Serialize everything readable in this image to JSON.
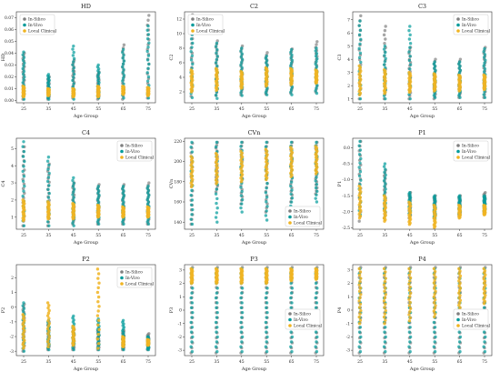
{
  "colors": {
    "In-Silico": "#808080",
    "In-Vivo": "#009b9b",
    "Local Clinical": "#f0b422"
  },
  "chart_data": [
    {
      "type": "scatter",
      "title": "HD",
      "xlabel": "Age Group",
      "ylabel": "HD",
      "categories": [
        "25",
        "35",
        "45",
        "55",
        "65",
        "75"
      ],
      "yticks": [
        "0.00",
        "0.01",
        "0.02",
        "0.03",
        "0.04",
        "0.05",
        "0.06",
        "0.07"
      ],
      "ylim": [
        -0.002,
        0.075
      ],
      "legend": "upper-left",
      "series": [
        {
          "name": "In-Silico",
          "ranges": [
            [
              0.001,
              0.04
            ],
            [
              0.001,
              0.02
            ],
            [
              0.002,
              0.034
            ],
            [
              0.001,
              0.024
            ],
            [
              0.001,
              0.047
            ],
            [
              0.002,
              0.072
            ]
          ]
        },
        {
          "name": "In-Vivo",
          "ranges": [
            [
              0.001,
              0.041
            ],
            [
              0.001,
              0.022
            ],
            [
              0.001,
              0.046
            ],
            [
              0.002,
              0.03
            ],
            [
              0.002,
              0.043
            ],
            [
              0.002,
              0.063
            ]
          ]
        },
        {
          "name": "Local Clinical",
          "ranges": [
            [
              0.003,
              0.012
            ],
            [
              0.004,
              0.01
            ],
            [
              0.003,
              0.01
            ],
            [
              0.003,
              0.012
            ],
            [
              0.005,
              0.012
            ],
            [
              0.004,
              0.011
            ]
          ]
        }
      ]
    },
    {
      "type": "scatter",
      "title": "C2",
      "xlabel": "Age Group",
      "ylabel": "C2",
      "categories": [
        "25",
        "35",
        "45",
        "55",
        "65",
        "75"
      ],
      "yticks": [
        "2",
        "4",
        "6",
        "8",
        "10",
        "12"
      ],
      "ylim": [
        0.5,
        13
      ],
      "legend": "upper-left",
      "series": [
        {
          "name": "In-Silico",
          "ranges": [
            [
              1.4,
              12.6
            ],
            [
              1.5,
              9.0
            ],
            [
              1.6,
              8.3
            ],
            [
              1.7,
              7.4
            ],
            [
              1.8,
              7.9
            ],
            [
              2.0,
              8.9
            ]
          ]
        },
        {
          "name": "In-Vivo",
          "ranges": [
            [
              1.2,
              11.0
            ],
            [
              1.1,
              8.7
            ],
            [
              1.5,
              8.0
            ],
            [
              1.6,
              6.9
            ],
            [
              1.6,
              7.8
            ],
            [
              1.8,
              8.0
            ]
          ]
        },
        {
          "name": "Local Clinical",
          "ranges": [
            [
              2.0,
              5.0
            ],
            [
              2.2,
              5.2
            ],
            [
              2.5,
              4.8
            ],
            [
              2.8,
              5.3
            ],
            [
              3.0,
              5.2
            ],
            [
              3.2,
              5.0
            ]
          ]
        }
      ]
    },
    {
      "type": "scatter",
      "title": "C3",
      "xlabel": "Age Group",
      "ylabel": "C3",
      "categories": [
        "25",
        "35",
        "45",
        "55",
        "65",
        "75"
      ],
      "yticks": [
        "1",
        "2",
        "3",
        "4",
        "5",
        "6",
        "7"
      ],
      "ylim": [
        0.7,
        7.6
      ],
      "legend": "upper-right",
      "series": [
        {
          "name": "In-Silico",
          "ranges": [
            [
              1.0,
              7.3
            ],
            [
              1.0,
              6.5
            ],
            [
              1.0,
              4.9
            ],
            [
              1.0,
              4.0
            ],
            [
              1.1,
              4.0
            ],
            [
              1.1,
              4.9
            ]
          ]
        },
        {
          "name": "In-Vivo",
          "ranges": [
            [
              1.0,
              6.9
            ],
            [
              1.0,
              5.0
            ],
            [
              1.0,
              6.5
            ],
            [
              1.1,
              3.8
            ],
            [
              1.1,
              3.8
            ],
            [
              1.1,
              4.8
            ]
          ]
        },
        {
          "name": "Local Clinical",
          "ranges": [
            [
              1.3,
              3.5
            ],
            [
              1.4,
              3.2
            ],
            [
              1.5,
              3.0
            ],
            [
              1.6,
              2.9
            ],
            [
              1.6,
              2.8
            ],
            [
              1.7,
              2.8
            ]
          ]
        }
      ]
    },
    {
      "type": "scatter",
      "title": "C4",
      "xlabel": "Age Group",
      "ylabel": "C4",
      "categories": [
        "25",
        "35",
        "45",
        "55",
        "65",
        "75"
      ],
      "yticks": [
        "1",
        "2",
        "3",
        "4",
        "5"
      ],
      "ylim": [
        0.3,
        5.6
      ],
      "legend": "upper-right",
      "series": [
        {
          "name": "In-Silico",
          "ranges": [
            [
              0.5,
              5.1
            ],
            [
              0.5,
              4.1
            ],
            [
              0.6,
              3.0
            ],
            [
              0.6,
              2.9
            ],
            [
              0.6,
              2.9
            ],
            [
              0.6,
              3.0
            ]
          ]
        },
        {
          "name": "In-Vivo",
          "ranges": [
            [
              0.5,
              5.4
            ],
            [
              0.5,
              4.5
            ],
            [
              0.5,
              3.3
            ],
            [
              0.6,
              2.8
            ],
            [
              0.6,
              2.8
            ],
            [
              0.6,
              2.8
            ]
          ]
        },
        {
          "name": "Local Clinical",
          "ranges": [
            [
              0.8,
              2.0
            ],
            [
              0.9,
              1.9
            ],
            [
              0.9,
              1.8
            ],
            [
              1.0,
              1.7
            ],
            [
              1.0,
              1.6
            ],
            [
              1.0,
              1.6
            ]
          ]
        }
      ]
    },
    {
      "type": "scatter",
      "title": "CVn",
      "xlabel": "Age Group",
      "ylabel": "CVn",
      "categories": [
        "25",
        "35",
        "45",
        "55",
        "65",
        "75"
      ],
      "yticks": [
        "140",
        "160",
        "180",
        "200",
        "220"
      ],
      "ylim": [
        133,
        223
      ],
      "legend": "lower-right",
      "series": [
        {
          "name": "In-Silico",
          "ranges": [
            [
              138,
              218
            ],
            [
              170,
              219
            ],
            [
              158,
              219
            ],
            [
              150,
              219
            ],
            [
              160,
              219
            ],
            [
              168,
              219
            ]
          ]
        },
        {
          "name": "In-Vivo",
          "ranges": [
            [
              138,
              219
            ],
            [
              140,
              219
            ],
            [
              150,
              219
            ],
            [
              142,
              219
            ],
            [
              152,
              219
            ],
            [
              160,
              219
            ]
          ]
        },
        {
          "name": "Local Clinical",
          "ranges": [
            [
              175,
              205
            ],
            [
              178,
              208
            ],
            [
              180,
              210
            ],
            [
              182,
              212
            ],
            [
              185,
              214
            ],
            [
              188,
              215
            ]
          ]
        }
      ]
    },
    {
      "type": "scatter",
      "title": "P1",
      "xlabel": "Age Group",
      "ylabel": "P1",
      "categories": [
        "25",
        "35",
        "45",
        "55",
        "65",
        "75"
      ],
      "yticks": [
        "-2.5",
        "-2.0",
        "-1.5",
        "-1.0",
        "-0.5",
        "0.0"
      ],
      "ylim": [
        -2.55,
        0.3
      ],
      "legend": "upper-right",
      "series": [
        {
          "name": "In-Silico",
          "ranges": [
            [
              -2.3,
              0.2
            ],
            [
              -2.2,
              -0.7
            ],
            [
              -2.2,
              -1.4
            ],
            [
              -2.2,
              -1.5
            ],
            [
              -2.1,
              -1.5
            ],
            [
              -2.0,
              -1.4
            ]
          ]
        },
        {
          "name": "In-Vivo",
          "ranges": [
            [
              -2.1,
              0.2
            ],
            [
              -2.0,
              -0.5
            ],
            [
              -2.1,
              -1.4
            ],
            [
              -2.2,
              -1.5
            ],
            [
              -2.1,
              -1.5
            ],
            [
              -2.0,
              -1.5
            ]
          ]
        },
        {
          "name": "Local Clinical",
          "ranges": [
            [
              -2.2,
              -1.2
            ],
            [
              -2.3,
              -1.5
            ],
            [
              -2.4,
              -1.7
            ],
            [
              -2.5,
              -1.8
            ],
            [
              -2.2,
              -1.8
            ],
            [
              -2.1,
              -1.8
            ]
          ]
        }
      ]
    },
    {
      "type": "scatter",
      "title": "P2",
      "xlabel": "Age Group",
      "ylabel": "P2",
      "categories": [
        "25",
        "35",
        "45",
        "55",
        "65",
        "75"
      ],
      "yticks": [
        "-3",
        "-2",
        "-1",
        "0",
        "1",
        "2"
      ],
      "ylim": [
        -3.3,
        2.9
      ],
      "legend": "upper-right",
      "series": [
        {
          "name": "In-Silico",
          "ranges": [
            [
              -3.0,
              0.2
            ],
            [
              -2.9,
              -1.0
            ],
            [
              -2.9,
              -1.5
            ],
            [
              -2.9,
              -1.5
            ],
            [
              -2.9,
              -1.6
            ],
            [
              -2.9,
              -1.8
            ]
          ]
        },
        {
          "name": "In-Vivo",
          "ranges": [
            [
              -3.0,
              0.3
            ],
            [
              -2.9,
              -0.9
            ],
            [
              -2.9,
              -0.6
            ],
            [
              -2.9,
              -0.8
            ],
            [
              -2.9,
              -0.9
            ],
            [
              -2.9,
              -2.0
            ]
          ]
        },
        {
          "name": "Local Clinical",
          "ranges": [
            [
              -2.8,
              -0.5
            ],
            [
              -2.7,
              0.3
            ],
            [
              -2.6,
              -1.3
            ],
            [
              -2.8,
              2.6
            ],
            [
              -2.7,
              -2.0
            ],
            [
              -2.6,
              -2.2
            ]
          ]
        }
      ]
    },
    {
      "type": "scatter",
      "title": "P3",
      "xlabel": "Age Group",
      "ylabel": "P3",
      "categories": [
        "25",
        "35",
        "45",
        "55",
        "65",
        "75"
      ],
      "yticks": [
        "-3",
        "-2",
        "-1",
        "0",
        "1",
        "2",
        "3"
      ],
      "ylim": [
        -3.4,
        3.4
      ],
      "legend": "center-right",
      "series": [
        {
          "name": "In-Silico",
          "ranges": [
            [
              -3.2,
              3.2
            ],
            [
              -3.2,
              3.2
            ],
            [
              -3.2,
              3.2
            ],
            [
              -3.2,
              3.2
            ],
            [
              -3.2,
              3.2
            ],
            [
              -3.2,
              3.2
            ]
          ]
        },
        {
          "name": "In-Vivo",
          "ranges": [
            [
              -3.1,
              3.1
            ],
            [
              -3.1,
              3.1
            ],
            [
              -3.1,
              3.1
            ],
            [
              -3.1,
              3.1
            ],
            [
              -3.1,
              3.1
            ],
            [
              -3.1,
              3.1
            ]
          ]
        },
        {
          "name": "Local Clinical",
          "ranges": [
            [
              2.0,
              3.1
            ],
            [
              2.0,
              3.1
            ],
            [
              2.0,
              3.1
            ],
            [
              2.0,
              3.1
            ],
            [
              2.2,
              3.1
            ],
            [
              2.3,
              3.1
            ]
          ]
        }
      ]
    },
    {
      "type": "scatter",
      "title": "P4",
      "xlabel": "Age Group",
      "ylabel": "P4",
      "categories": [
        "25",
        "35",
        "45",
        "55",
        "65",
        "75"
      ],
      "yticks": [
        "-3",
        "-2",
        "-1",
        "0",
        "1",
        "2",
        "3"
      ],
      "ylim": [
        -3.4,
        3.4
      ],
      "legend": "center-right",
      "series": [
        {
          "name": "In-Silico",
          "ranges": [
            [
              -3.2,
              3.2
            ],
            [
              -3.2,
              3.2
            ],
            [
              -3.2,
              3.2
            ],
            [
              -3.2,
              3.2
            ],
            [
              -3.2,
              3.2
            ],
            [
              -3.2,
              3.2
            ]
          ]
        },
        {
          "name": "In-Vivo",
          "ranges": [
            [
              -3.1,
              3.1
            ],
            [
              -3.1,
              3.1
            ],
            [
              -3.1,
              3.1
            ],
            [
              -3.1,
              3.1
            ],
            [
              -3.1,
              3.1
            ],
            [
              -3.1,
              3.1
            ]
          ]
        },
        {
          "name": "Local Clinical",
          "ranges": [
            [
              -1.0,
              3.1
            ],
            [
              -1.0,
              3.1
            ],
            [
              -0.8,
              3.1
            ],
            [
              -0.5,
              3.1
            ],
            [
              0.0,
              3.1
            ],
            [
              0.5,
              3.1
            ]
          ]
        }
      ]
    }
  ]
}
